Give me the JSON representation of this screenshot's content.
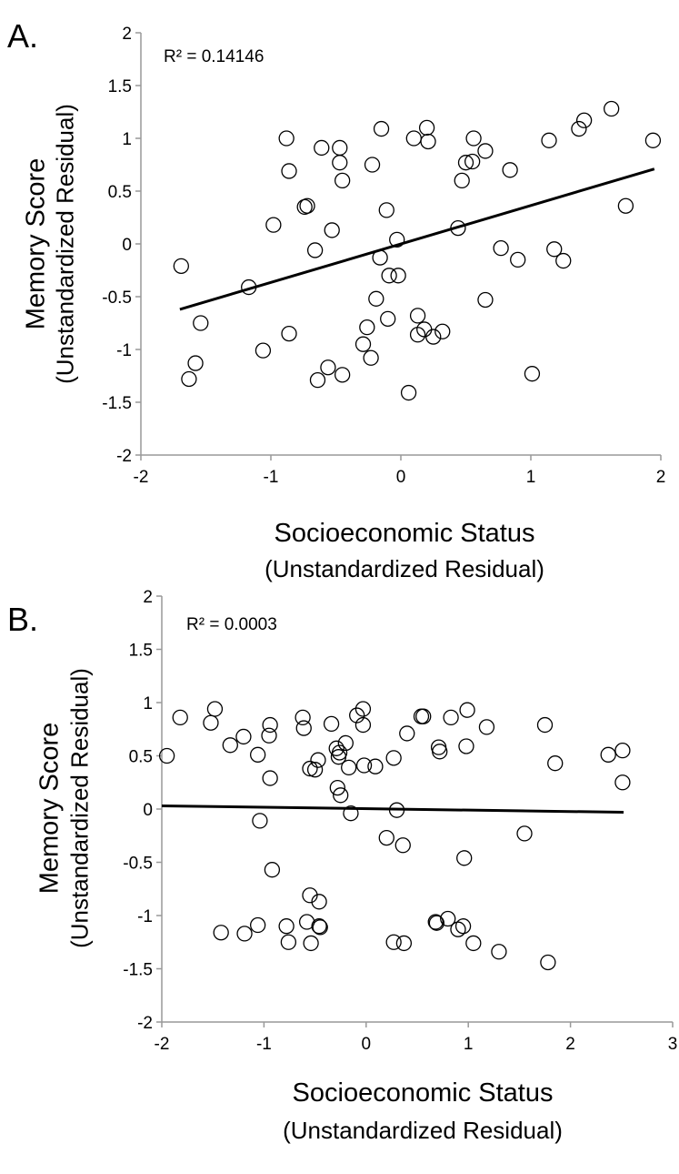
{
  "chart_data": [
    {
      "panel": "A.",
      "type": "scatter",
      "annotation": "R² = 0.14146",
      "ylabel": "Memory Score",
      "ylabel_sub": "(Unstandardized Residual)",
      "xlabel": "Socioeconomic Status",
      "xlabel_sub": "(Unstandardized Residual)",
      "xlim": [
        -2,
        2
      ],
      "ylim": [
        -2,
        2
      ],
      "xticks": [
        -2,
        -1,
        0,
        1,
        2
      ],
      "yticks": [
        -2,
        -1.5,
        -1,
        -0.5,
        0,
        0.5,
        1,
        1.5,
        2
      ],
      "xtick_labels": [
        "-2",
        "-1",
        "0",
        "1",
        "2"
      ],
      "ytick_labels": [
        "-2",
        "-1.5",
        "-1",
        "-0.5",
        "0",
        "0.5",
        "1",
        "1.5",
        "2"
      ],
      "grid": false,
      "trendline": {
        "x": [
          -1.7,
          1.95
        ],
        "y": [
          -0.62,
          0.71
        ]
      },
      "points": [
        [
          -1.69,
          -0.21
        ],
        [
          -1.63,
          -1.28
        ],
        [
          -1.58,
          -1.13
        ],
        [
          -1.54,
          -0.75
        ],
        [
          -1.17,
          -0.41
        ],
        [
          -1.06,
          -1.01
        ],
        [
          -0.98,
          0.18
        ],
        [
          -0.88,
          1.0
        ],
        [
          -0.86,
          0.69
        ],
        [
          -0.86,
          -0.85
        ],
        [
          -0.74,
          0.35
        ],
        [
          -0.72,
          0.36
        ],
        [
          -0.66,
          -0.06
        ],
        [
          -0.64,
          -1.29
        ],
        [
          -0.61,
          0.91
        ],
        [
          -0.56,
          -1.17
        ],
        [
          -0.53,
          0.13
        ],
        [
          -0.47,
          0.91
        ],
        [
          -0.47,
          0.77
        ],
        [
          -0.45,
          0.6
        ],
        [
          -0.45,
          -1.24
        ],
        [
          -0.29,
          -0.95
        ],
        [
          -0.26,
          -0.79
        ],
        [
          -0.23,
          -1.08
        ],
        [
          -0.22,
          0.75
        ],
        [
          -0.19,
          -0.52
        ],
        [
          -0.16,
          -0.13
        ],
        [
          -0.15,
          1.09
        ],
        [
          -0.11,
          0.32
        ],
        [
          -0.1,
          -0.71
        ],
        [
          -0.09,
          -0.3
        ],
        [
          -0.03,
          0.04
        ],
        [
          -0.02,
          -0.3
        ],
        [
          0.06,
          -1.41
        ],
        [
          0.1,
          1.0
        ],
        [
          0.13,
          -0.68
        ],
        [
          0.13,
          -0.86
        ],
        [
          0.18,
          -0.81
        ],
        [
          0.2,
          1.1
        ],
        [
          0.21,
          0.97
        ],
        [
          0.25,
          -0.88
        ],
        [
          0.32,
          -0.83
        ],
        [
          0.44,
          0.15
        ],
        [
          0.47,
          0.6
        ],
        [
          0.5,
          0.77
        ],
        [
          0.55,
          0.78
        ],
        [
          0.56,
          1.0
        ],
        [
          0.65,
          0.88
        ],
        [
          0.65,
          -0.53
        ],
        [
          0.77,
          -0.04
        ],
        [
          0.84,
          0.7
        ],
        [
          0.9,
          -0.15
        ],
        [
          1.01,
          -1.23
        ],
        [
          1.14,
          0.98
        ],
        [
          1.18,
          -0.05
        ],
        [
          1.25,
          -0.16
        ],
        [
          1.37,
          1.09
        ],
        [
          1.41,
          1.17
        ],
        [
          1.62,
          1.28
        ],
        [
          1.73,
          0.36
        ],
        [
          1.94,
          0.98
        ]
      ]
    },
    {
      "panel": "B.",
      "type": "scatter",
      "annotation": "R² = 0.0003",
      "ylabel": "Memory Score",
      "ylabel_sub": "(Unstandardized Residual)",
      "xlabel": "Socioeconomic Status",
      "xlabel_sub": "(Unstandardized Residual)",
      "xlim": [
        -2,
        3
      ],
      "ylim": [
        -2,
        2
      ],
      "xticks": [
        -2,
        -1,
        0,
        1,
        2,
        3
      ],
      "yticks": [
        -2,
        -1.5,
        -1,
        -0.5,
        0,
        0.5,
        1,
        1.5,
        2
      ],
      "xtick_labels": [
        "-2",
        "-1",
        "0",
        "1",
        "2",
        "3"
      ],
      "ytick_labels": [
        "-2",
        "-1.5",
        "-1",
        "-0.5",
        "0",
        "0.5",
        "1",
        "1.5",
        "2"
      ],
      "grid": false,
      "trendline": {
        "x": [
          -2.0,
          2.52
        ],
        "y": [
          0.03,
          -0.03
        ]
      },
      "points": [
        [
          -1.95,
          0.5
        ],
        [
          -1.82,
          0.86
        ],
        [
          -1.52,
          0.81
        ],
        [
          -1.48,
          0.94
        ],
        [
          -1.42,
          -1.16
        ],
        [
          -1.33,
          0.6
        ],
        [
          -1.2,
          0.68
        ],
        [
          -1.19,
          -1.17
        ],
        [
          -1.06,
          0.51
        ],
        [
          -1.06,
          -1.09
        ],
        [
          -1.04,
          -0.11
        ],
        [
          -0.95,
          0.69
        ],
        [
          -0.94,
          0.79
        ],
        [
          -0.94,
          0.29
        ],
        [
          -0.92,
          -0.57
        ],
        [
          -0.78,
          -1.1
        ],
        [
          -0.76,
          -1.25
        ],
        [
          -0.62,
          0.86
        ],
        [
          -0.61,
          0.76
        ],
        [
          -0.58,
          -1.06
        ],
        [
          -0.55,
          0.38
        ],
        [
          -0.55,
          -0.81
        ],
        [
          -0.54,
          -1.26
        ],
        [
          -0.5,
          0.37
        ],
        [
          -0.47,
          0.46
        ],
        [
          -0.46,
          -1.1
        ],
        [
          -0.46,
          -0.87
        ],
        [
          -0.45,
          -1.11
        ],
        [
          -0.34,
          0.8
        ],
        [
          -0.29,
          0.57
        ],
        [
          -0.28,
          0.2
        ],
        [
          -0.27,
          0.49
        ],
        [
          -0.26,
          0.53
        ],
        [
          -0.25,
          0.13
        ],
        [
          -0.2,
          0.62
        ],
        [
          -0.17,
          0.39
        ],
        [
          -0.15,
          -0.04
        ],
        [
          -0.09,
          0.88
        ],
        [
          -0.03,
          0.94
        ],
        [
          -0.03,
          0.79
        ],
        [
          -0.02,
          0.41
        ],
        [
          0.09,
          0.4
        ],
        [
          0.2,
          -0.27
        ],
        [
          0.27,
          -1.25
        ],
        [
          0.27,
          0.48
        ],
        [
          0.3,
          -0.01
        ],
        [
          0.36,
          -0.34
        ],
        [
          0.37,
          -1.26
        ],
        [
          0.4,
          0.71
        ],
        [
          0.54,
          0.87
        ],
        [
          0.56,
          0.87
        ],
        [
          0.68,
          -1.06
        ],
        [
          0.69,
          -1.07
        ],
        [
          0.71,
          0.58
        ],
        [
          0.72,
          0.54
        ],
        [
          0.8,
          -1.03
        ],
        [
          0.83,
          0.86
        ],
        [
          0.9,
          -1.13
        ],
        [
          0.95,
          -1.1
        ],
        [
          0.96,
          -0.46
        ],
        [
          0.98,
          0.59
        ],
        [
          0.99,
          0.93
        ],
        [
          1.05,
          -1.26
        ],
        [
          1.18,
          0.77
        ],
        [
          1.3,
          -1.34
        ],
        [
          1.55,
          -0.23
        ],
        [
          1.75,
          0.79
        ],
        [
          1.78,
          -1.44
        ],
        [
          1.85,
          0.43
        ],
        [
          2.37,
          0.51
        ],
        [
          2.51,
          0.55
        ],
        [
          2.51,
          0.25
        ]
      ]
    }
  ]
}
